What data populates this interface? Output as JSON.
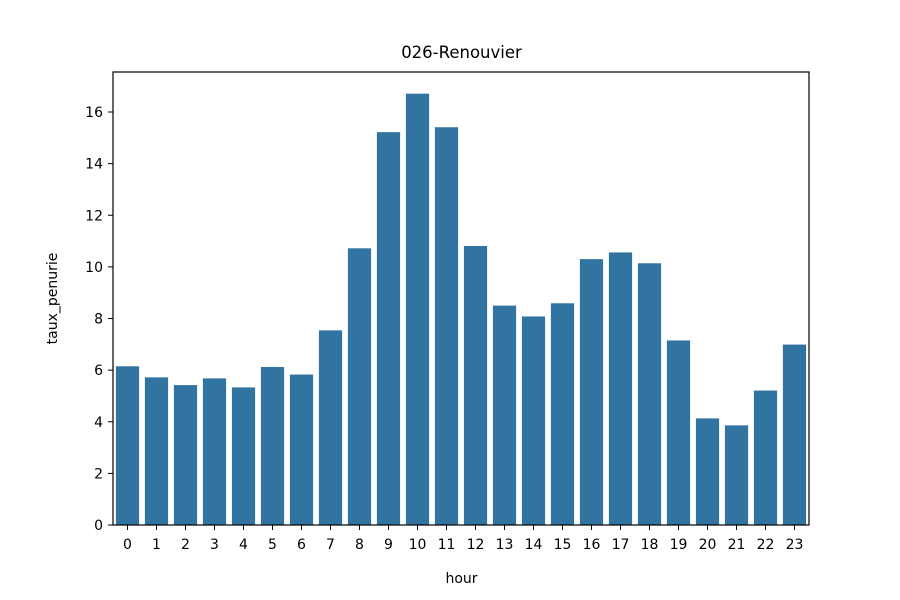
{
  "chart_data": {
    "type": "bar",
    "title": "026-Renouvier",
    "xlabel": "hour",
    "ylabel": "taux_penurie",
    "categories": [
      "0",
      "1",
      "2",
      "3",
      "4",
      "5",
      "6",
      "7",
      "8",
      "9",
      "10",
      "11",
      "12",
      "13",
      "14",
      "15",
      "16",
      "17",
      "18",
      "19",
      "20",
      "21",
      "22",
      "23"
    ],
    "values": [
      6.15,
      5.72,
      5.42,
      5.68,
      5.33,
      6.12,
      5.83,
      7.54,
      10.72,
      15.22,
      16.71,
      15.41,
      10.81,
      8.5,
      8.08,
      8.59,
      10.3,
      10.56,
      10.14,
      7.15,
      4.13,
      3.86,
      5.21,
      6.99
    ],
    "ylim": [
      0,
      17.55
    ],
    "yticks": [
      0,
      2,
      4,
      6,
      8,
      10,
      12,
      14,
      16
    ],
    "grid": false,
    "bar_color": "#3274a1"
  }
}
